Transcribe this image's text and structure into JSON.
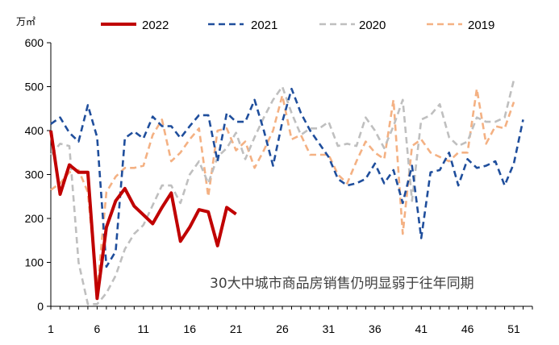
{
  "chart_data": {
    "type": "line",
    "unit_label": "万㎡",
    "annotation": "30大中城市商品房销售仍明显弱于往年同期",
    "ylim": [
      0,
      600
    ],
    "y_ticks": [
      0,
      100,
      200,
      300,
      400,
      500,
      600
    ],
    "xlim": [
      1,
      53
    ],
    "x_ticks": [
      1,
      6,
      11,
      16,
      21,
      26,
      31,
      36,
      41,
      46,
      51
    ],
    "grid": false,
    "legend_position": "top",
    "series": [
      {
        "name": "2022",
        "color": "#c00000",
        "style": "solid",
        "values": [
          400,
          255,
          322,
          305,
          305,
          18,
          180,
          240,
          268,
          228,
          208,
          188,
          225,
          258,
          148,
          180,
          220,
          215,
          138,
          225,
          210
        ]
      },
      {
        "name": "2021",
        "color": "#1f4e9c",
        "style": "dashed",
        "values": [
          415,
          430,
          395,
          375,
          458,
          385,
          90,
          125,
          383,
          398,
          382,
          432,
          410,
          410,
          383,
          410,
          435,
          435,
          330,
          440,
          420,
          420,
          470,
          400,
          320,
          420,
          495,
          440,
          400,
          370,
          340,
          290,
          275,
          280,
          290,
          325,
          280,
          310,
          235,
          320,
          155,
          305,
          310,
          350,
          275,
          335,
          315,
          320,
          330,
          275,
          325,
          425
        ]
      },
      {
        "name": "2020",
        "color": "#bfbfbf",
        "style": "dashed",
        "values": [
          345,
          370,
          365,
          100,
          5,
          5,
          30,
          70,
          130,
          165,
          185,
          230,
          275,
          275,
          235,
          300,
          330,
          280,
          340,
          360,
          395,
          335,
          385,
          430,
          470,
          500,
          440,
          390,
          405,
          405,
          420,
          365,
          370,
          365,
          430,
          400,
          360,
          410,
          470,
          240,
          425,
          435,
          460,
          385,
          365,
          375,
          430,
          420,
          420,
          430,
          515
        ]
      },
      {
        "name": "2019",
        "color": "#f4b183",
        "style": "dashed",
        "values": [
          265,
          280,
          305,
          310,
          260,
          35,
          260,
          295,
          315,
          315,
          320,
          390,
          425,
          330,
          350,
          380,
          405,
          250,
          400,
          405,
          355,
          375,
          315,
          355,
          400,
          480,
          380,
          390,
          345,
          345,
          345,
          300,
          280,
          330,
          375,
          350,
          335,
          470,
          165,
          365,
          380,
          350,
          340,
          330,
          350,
          350,
          495,
          370,
          410,
          405,
          465
        ]
      }
    ]
  }
}
